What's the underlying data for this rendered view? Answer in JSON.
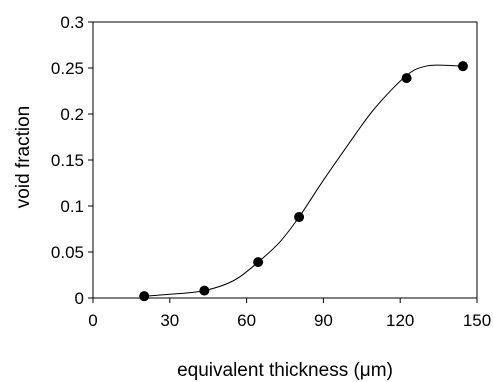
{
  "chart_data": {
    "type": "scatter",
    "title": "",
    "xlabel": "equivalent thickness (μm)",
    "ylabel": "void fraction",
    "xlim": [
      0,
      150
    ],
    "ylim": [
      0,
      0.3
    ],
    "x_ticks": [
      0,
      30,
      60,
      90,
      120,
      150
    ],
    "y_ticks": [
      0,
      0.05,
      0.1,
      0.15,
      0.2,
      0.25,
      0.3
    ],
    "x_tick_labels": [
      "0",
      "30",
      "60",
      "90",
      "120",
      "150"
    ],
    "y_tick_labels": [
      "0",
      "0.05",
      "0.1",
      "0.15",
      "0.2",
      "0.25",
      "0.3"
    ],
    "grid": false,
    "legend": "none",
    "series": [
      {
        "x": [
          20,
          43.5,
          64.5,
          80.5,
          122.5,
          144.5
        ],
        "y": [
          0.002,
          0.008,
          0.039,
          0.088,
          0.239,
          0.252
        ],
        "marker": "filled-circle",
        "color": "#000000"
      }
    ],
    "fit_curve": {
      "style": "smooth-line",
      "color": "#000000",
      "x": [
        20,
        30,
        43.5,
        55,
        64.5,
        73,
        80.5,
        90,
        100,
        110,
        122.5,
        130,
        137,
        144.5
      ],
      "y": [
        0.002,
        0.004,
        0.008,
        0.019,
        0.039,
        0.061,
        0.088,
        0.128,
        0.168,
        0.206,
        0.242,
        0.252,
        0.253,
        0.252
      ]
    }
  }
}
